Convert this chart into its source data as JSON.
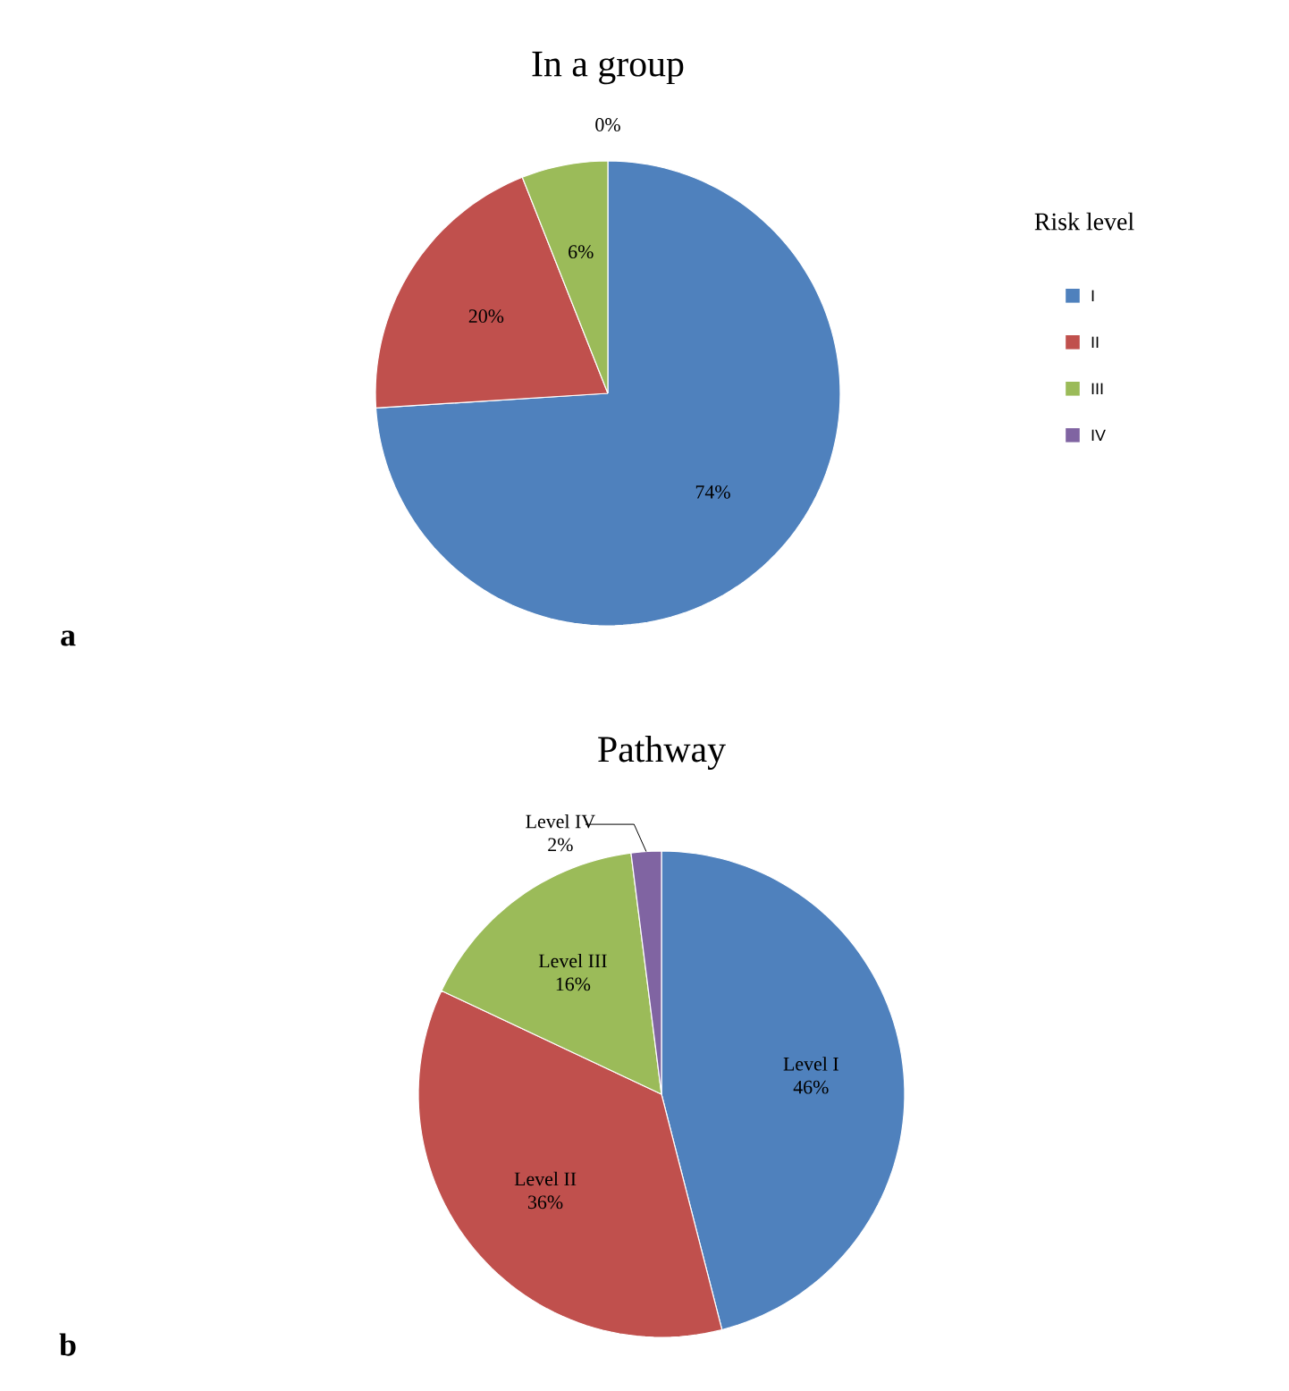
{
  "chart_data": [
    {
      "type": "pie",
      "title": "In a group",
      "legend_title": "Risk level",
      "legend": "right",
      "categories": [
        "I",
        "II",
        "III",
        "IV"
      ],
      "values": [
        74,
        20,
        6,
        0
      ],
      "value_labels": [
        "74%",
        "20%",
        "6%",
        "0%"
      ],
      "colors": [
        "#4f81bd",
        "#c0504d",
        "#9bbb59",
        "#8064a2"
      ],
      "annotations": [
        "a"
      ]
    },
    {
      "type": "pie",
      "title": "Pathway",
      "legend": false,
      "categories": [
        "Level I",
        "Level II",
        "Level III",
        "Level IV"
      ],
      "values": [
        46,
        36,
        16,
        2
      ],
      "value_labels": [
        "46%",
        "36%",
        "16%",
        "2%"
      ],
      "colors": [
        "#4f81bd",
        "#c0504d",
        "#9bbb59",
        "#8064a2"
      ],
      "annotations": [
        "b"
      ]
    }
  ]
}
